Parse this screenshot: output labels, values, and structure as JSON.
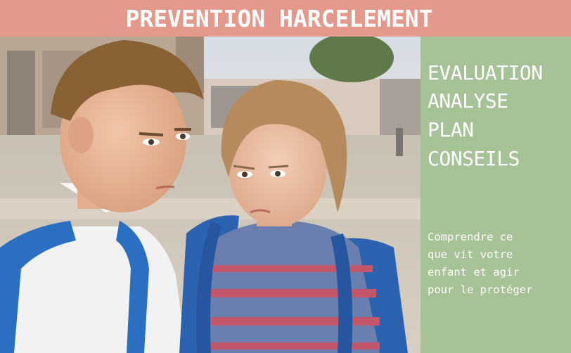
{
  "banner": {
    "title": "PREVENTION HARCELEMENT",
    "color": "#e39a8c"
  },
  "photo": {
    "subject": "two-children-schoolyard-image"
  },
  "side_panel": {
    "color": "#a7c296",
    "keywords": [
      "EVALUATION",
      "ANALYSE",
      "PLAN",
      "CONSEILS"
    ],
    "description_lines": [
      "Comprendre ce",
      "que vit votre",
      "enfant et agir",
      "pour le protéger"
    ]
  }
}
